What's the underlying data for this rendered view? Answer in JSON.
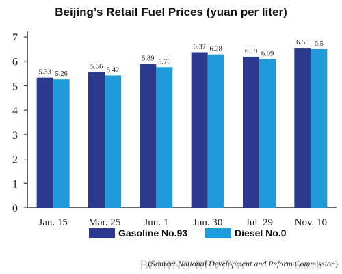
{
  "chart_data": {
    "type": "bar",
    "title": "Beijing’s Retail Fuel Prices (yuan per liter)",
    "categories": [
      "Jan. 15",
      "Mar. 25",
      "Jun. 1",
      "Jun. 30",
      "Jul. 29",
      "Nov. 10"
    ],
    "series": [
      {
        "name": "Gasoline No.93",
        "values": [
          5.33,
          5.56,
          5.89,
          6.37,
          6.19,
          6.55
        ],
        "value_labels": [
          "5.33",
          "5.56",
          "5.89",
          "6.37",
          "6.19",
          "6.55"
        ],
        "color": "#2b3a8c"
      },
      {
        "name": "Diesel No.0",
        "values": [
          5.26,
          5.42,
          5.76,
          6.28,
          6.09,
          6.5
        ],
        "value_labels": [
          "5.26",
          "5.42",
          "5.76",
          "6.28",
          "6.09",
          "6.5"
        ],
        "color": "#1f9bd9"
      }
    ],
    "ylim": [
      0,
      7
    ],
    "yticks": [
      "0",
      "1",
      "2",
      "3",
      "4",
      "5",
      "6",
      "7"
    ],
    "xlabel": "",
    "ylabel": "",
    "grid": false,
    "legend_position": "bottom"
  },
  "source": {
    "prefix": "(Source: ",
    "italic": "National Development and Reform Commission",
    "suffix": ")"
  },
  "watermark": {
    "name": "BEIJING REVIEW",
    "domain": ".com.cn"
  }
}
